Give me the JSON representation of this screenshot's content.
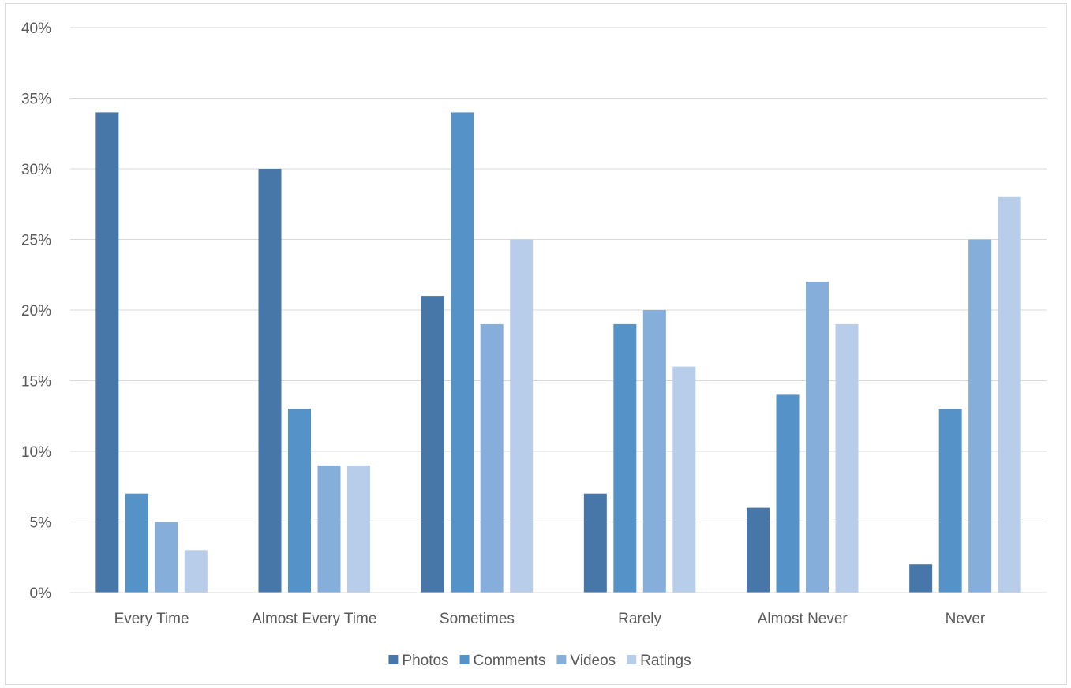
{
  "chart_data": {
    "type": "bar",
    "categories": [
      "Every Time",
      "Almost Every Time",
      "Sometimes",
      "Rarely",
      "Almost Never",
      "Never"
    ],
    "series": [
      {
        "name": "Photos",
        "color": "#4677a8",
        "values": [
          34,
          30,
          21,
          7,
          6,
          2
        ]
      },
      {
        "name": "Comments",
        "color": "#5592c7",
        "values": [
          7,
          13,
          34,
          19,
          14,
          13
        ]
      },
      {
        "name": "Videos",
        "color": "#86aedb",
        "values": [
          5,
          9,
          19,
          20,
          22,
          25
        ]
      },
      {
        "name": "Ratings",
        "color": "#b8cde9",
        "values": [
          3,
          9,
          25,
          16,
          19,
          28
        ]
      }
    ],
    "y_ticks": [
      "0%",
      "5%",
      "10%",
      "15%",
      "20%",
      "25%",
      "30%",
      "35%",
      "40%"
    ],
    "ylim": [
      0,
      40
    ],
    "y_unit": "%",
    "grid": true,
    "legend_position": "bottom",
    "title": "",
    "xlabel": "",
    "ylabel": ""
  }
}
